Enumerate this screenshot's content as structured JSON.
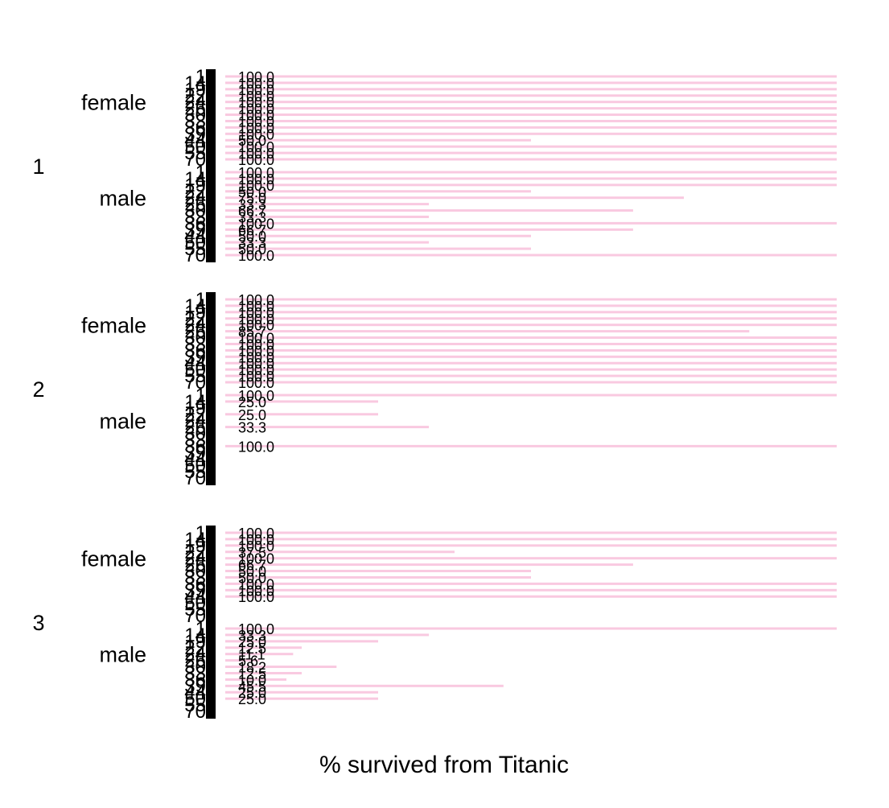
{
  "chart_data": {
    "type": "bar",
    "orientation": "horizontal",
    "xlabel": "% survived from Titanic",
    "xlim": [
      0,
      100
    ],
    "bar_color": "#f9c9e0",
    "panels": [
      {
        "label": "1",
        "groups": [
          {
            "label": "female",
            "bars": [
              {
                "label": "1",
                "value": 100.0
              },
              {
                "label": "14",
                "value": 100.0
              },
              {
                "label": "19",
                "value": 100.0
              },
              {
                "label": "22",
                "value": 100.0
              },
              {
                "label": "24",
                "value": 100.0
              },
              {
                "label": "26",
                "value": 100.0
              },
              {
                "label": "30",
                "value": 100.0
              },
              {
                "label": "33",
                "value": 100.0
              },
              {
                "label": "36",
                "value": 100.0
              },
              {
                "label": "39",
                "value": 100.0
              },
              {
                "label": "44",
                "value": 50.0
              },
              {
                "label": "50",
                "value": 100.0
              },
              {
                "label": "55",
                "value": 100.0
              },
              {
                "label": "70",
                "value": 100.0
              }
            ]
          },
          {
            "label": "male",
            "bars": [
              {
                "label": "1",
                "value": 100.0
              },
              {
                "label": "14",
                "value": 100.0
              },
              {
                "label": "19",
                "value": 100.0
              },
              {
                "label": "22",
                "value": 50.0
              },
              {
                "label": "24",
                "value": 75.0
              },
              {
                "label": "26",
                "value": 33.3
              },
              {
                "label": "30",
                "value": 66.7
              },
              {
                "label": "33",
                "value": 33.3
              },
              {
                "label": "36",
                "value": 100.0
              },
              {
                "label": "39",
                "value": 66.7
              },
              {
                "label": "44",
                "value": 50.0
              },
              {
                "label": "50",
                "value": 33.3
              },
              {
                "label": "55",
                "value": 50.0
              },
              {
                "label": "70",
                "value": 100.0
              }
            ]
          }
        ]
      },
      {
        "label": "2",
        "groups": [
          {
            "label": "female",
            "bars": [
              {
                "label": "1",
                "value": 100.0
              },
              {
                "label": "14",
                "value": 100.0
              },
              {
                "label": "19",
                "value": 100.0
              },
              {
                "label": "22",
                "value": 100.0
              },
              {
                "label": "24",
                "value": 100.0
              },
              {
                "label": "26",
                "value": 85.7
              },
              {
                "label": "30",
                "value": 100.0
              },
              {
                "label": "33",
                "value": 100.0
              },
              {
                "label": "36",
                "value": 100.0
              },
              {
                "label": "39",
                "value": 100.0
              },
              {
                "label": "44",
                "value": 100.0
              },
              {
                "label": "50",
                "value": 100.0
              },
              {
                "label": "55",
                "value": 100.0
              },
              {
                "label": "70",
                "value": 100.0
              }
            ]
          },
          {
            "label": "male",
            "bars": [
              {
                "label": "1",
                "value": 100.0
              },
              {
                "label": "14",
                "value": 25.0
              },
              {
                "label": "19",
                "value": 0
              },
              {
                "label": "22",
                "value": 25.0
              },
              {
                "label": "24",
                "value": 0
              },
              {
                "label": "26",
                "value": 33.3
              },
              {
                "label": "30",
                "value": 0
              },
              {
                "label": "33",
                "value": 0
              },
              {
                "label": "36",
                "value": 100.0
              },
              {
                "label": "39",
                "value": 0
              },
              {
                "label": "44",
                "value": 0
              },
              {
                "label": "50",
                "value": 0
              },
              {
                "label": "55",
                "value": 0
              },
              {
                "label": "70",
                "value": 0
              }
            ]
          }
        ]
      },
      {
        "label": "3",
        "groups": [
          {
            "label": "female",
            "bars": [
              {
                "label": "1",
                "value": 100.0
              },
              {
                "label": "14",
                "value": 100.0
              },
              {
                "label": "19",
                "value": 100.0
              },
              {
                "label": "22",
                "value": 37.5
              },
              {
                "label": "24",
                "value": 100.0
              },
              {
                "label": "26",
                "value": 66.7
              },
              {
                "label": "30",
                "value": 50.0
              },
              {
                "label": "33",
                "value": 50.0
              },
              {
                "label": "36",
                "value": 100.0
              },
              {
                "label": "39",
                "value": 100.0
              },
              {
                "label": "44",
                "value": 100.0
              },
              {
                "label": "50",
                "value": 0
              },
              {
                "label": "55",
                "value": 0
              },
              {
                "label": "70",
                "value": 0
              }
            ]
          },
          {
            "label": "male",
            "bars": [
              {
                "label": "1",
                "value": 100.0
              },
              {
                "label": "14",
                "value": 33.3
              },
              {
                "label": "19",
                "value": 25.0
              },
              {
                "label": "22",
                "value": 12.5
              },
              {
                "label": "24",
                "value": 11.1
              },
              {
                "label": "26",
                "value": 5.6
              },
              {
                "label": "30",
                "value": 18.2
              },
              {
                "label": "33",
                "value": 12.5
              },
              {
                "label": "36",
                "value": 10.0
              },
              {
                "label": "39",
                "value": 45.5
              },
              {
                "label": "44",
                "value": 25.0
              },
              {
                "label": "50",
                "value": 25.0
              },
              {
                "label": "55",
                "value": 0
              },
              {
                "label": "70",
                "value": 0
              }
            ]
          }
        ]
      }
    ]
  }
}
